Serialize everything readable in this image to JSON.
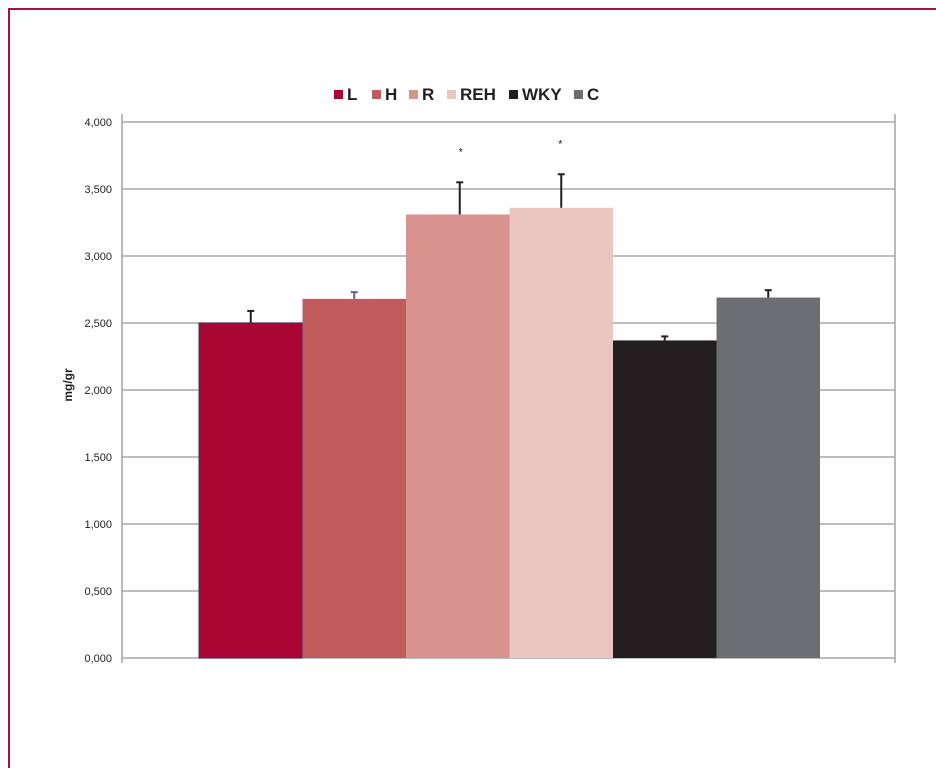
{
  "chart_data": {
    "type": "bar",
    "ylabel": "mg/gr",
    "ylim": [
      0,
      4000
    ],
    "yticks": [
      "0,000",
      "0,500",
      "1,000",
      "1,500",
      "2,000",
      "2,500",
      "3,000",
      "3,500",
      "4,000"
    ],
    "grid": true,
    "legend_position": "top-center",
    "series": [
      {
        "name": "L",
        "value": 2500,
        "error": 90,
        "color": "#a80532",
        "error_color": "#231f20",
        "significance": ""
      },
      {
        "name": "H",
        "value": 2680,
        "error": 50,
        "color": "#c05a5c",
        "error_color": "#6b5b9a",
        "significance": ""
      },
      {
        "name": "R",
        "value": 3310,
        "error": 240,
        "color": "#d9938f",
        "error_color": "#231f20",
        "significance": "*"
      },
      {
        "name": "REH",
        "value": 3360,
        "error": 250,
        "color": "#ebc6c0",
        "error_color": "#231f20",
        "significance": "*"
      },
      {
        "name": "WKY",
        "value": 2370,
        "error": 30,
        "color": "#231f20",
        "error_color": "#231f20",
        "significance": ""
      },
      {
        "name": "C",
        "value": 2690,
        "error": 55,
        "color": "#6d6e72",
        "error_color": "#231f20",
        "significance": ""
      }
    ]
  }
}
